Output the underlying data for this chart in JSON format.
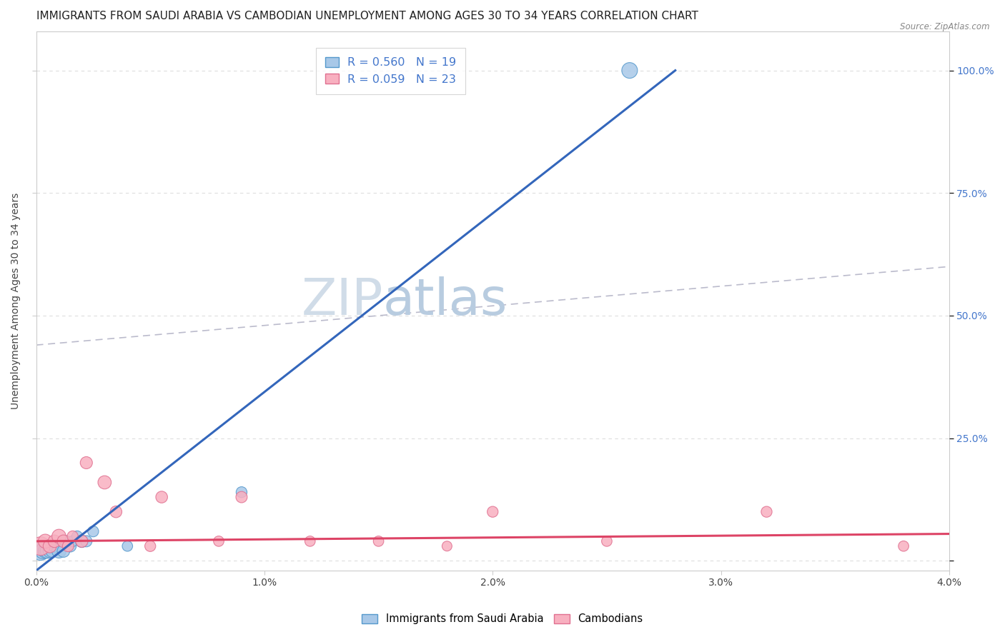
{
  "title": "IMMIGRANTS FROM SAUDI ARABIA VS CAMBODIAN UNEMPLOYMENT AMONG AGES 30 TO 34 YEARS CORRELATION CHART",
  "source": "Source: ZipAtlas.com",
  "ylabel": "Unemployment Among Ages 30 to 34 years",
  "xlim": [
    0.0,
    0.04
  ],
  "ylim": [
    -0.02,
    1.08
  ],
  "xticks": [
    0.0,
    0.01,
    0.02,
    0.03,
    0.04
  ],
  "xtick_labels": [
    "0.0%",
    "1.0%",
    "2.0%",
    "3.0%",
    "4.0%"
  ],
  "yticks": [
    0.0,
    0.25,
    0.5,
    0.75,
    1.0
  ],
  "left_ytick_labels": [
    "",
    "",
    "",
    "",
    ""
  ],
  "right_ytick_labels": [
    "",
    "25.0%",
    "50.0%",
    "75.0%",
    "100.0%"
  ],
  "legend_R1": "R = 0.560",
  "legend_N1": "N = 19",
  "legend_R2": "R = 0.059",
  "legend_N2": "N = 23",
  "blue_scatter_x": [
    0.0002,
    0.0003,
    0.0004,
    0.0005,
    0.0006,
    0.0007,
    0.0008,
    0.001,
    0.0012,
    0.0013,
    0.0015,
    0.0016,
    0.0018,
    0.002,
    0.0022,
    0.0025,
    0.004,
    0.009,
    0.026
  ],
  "blue_scatter_y": [
    0.02,
    0.02,
    0.02,
    0.02,
    0.02,
    0.02,
    0.03,
    0.02,
    0.02,
    0.04,
    0.03,
    0.04,
    0.05,
    0.04,
    0.04,
    0.06,
    0.03,
    0.14,
    1.0
  ],
  "blue_sizes": [
    350,
    250,
    200,
    220,
    180,
    160,
    150,
    200,
    160,
    130,
    140,
    120,
    120,
    160,
    130,
    120,
    110,
    120,
    250
  ],
  "blue_trend_x": [
    0.0,
    0.028
  ],
  "blue_trend_y": [
    -0.02,
    1.0
  ],
  "pink_scatter_x": [
    0.0002,
    0.0004,
    0.0006,
    0.0008,
    0.001,
    0.0012,
    0.0014,
    0.0016,
    0.002,
    0.0022,
    0.003,
    0.0035,
    0.005,
    0.0055,
    0.008,
    0.009,
    0.012,
    0.015,
    0.018,
    0.02,
    0.025,
    0.032,
    0.038
  ],
  "pink_scatter_y": [
    0.03,
    0.04,
    0.03,
    0.04,
    0.05,
    0.04,
    0.03,
    0.05,
    0.04,
    0.2,
    0.16,
    0.1,
    0.03,
    0.13,
    0.04,
    0.13,
    0.04,
    0.04,
    0.03,
    0.1,
    0.04,
    0.1,
    0.03
  ],
  "pink_sizes": [
    350,
    200,
    180,
    160,
    200,
    160,
    130,
    120,
    150,
    150,
    180,
    140,
    120,
    140,
    110,
    130,
    110,
    110,
    100,
    120,
    110,
    120,
    110
  ],
  "pink_trend_x": [
    0.0,
    0.04
  ],
  "pink_trend_y": [
    0.04,
    0.055
  ],
  "dashed_trend_x": [
    0.0,
    0.04
  ],
  "dashed_trend_y": [
    0.44,
    0.6
  ],
  "blue_color": "#a8c8e8",
  "blue_edge_color": "#5599cc",
  "pink_color": "#f8b0c0",
  "pink_edge_color": "#e07090",
  "blue_trend_color": "#3366bb",
  "pink_trend_color": "#dd4466",
  "dashed_color": "#bbbbcc",
  "background_color": "#ffffff",
  "grid_color": "#dddddd",
  "title_fontsize": 11,
  "axis_label_fontsize": 10,
  "tick_fontsize": 10,
  "right_tick_color": "#4477cc",
  "watermark_zip": "ZIP",
  "watermark_atlas": "atlas",
  "watermark_color_zip": "#d0dce8",
  "watermark_color_atlas": "#b8cce0",
  "watermark_fontsize": 52
}
